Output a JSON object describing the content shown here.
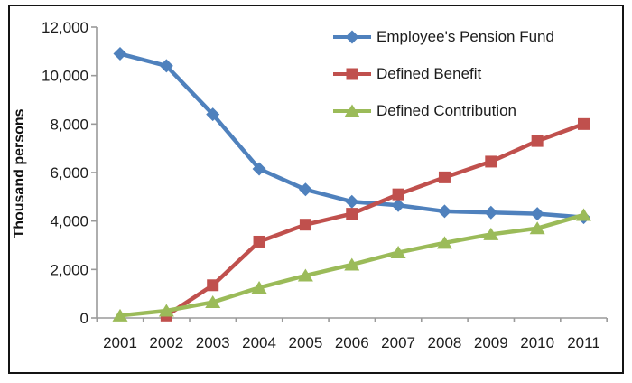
{
  "figure": {
    "background_color": "#ffffff",
    "frame_color": "#141414",
    "axis_color": "#9a9a9a",
    "text_color": "#1c1c1c"
  },
  "chart_data": {
    "type": "line",
    "title": "",
    "xlabel": "",
    "ylabel": "Thousand persons",
    "categories": [
      "2001",
      "2002",
      "2003",
      "2004",
      "2005",
      "2006",
      "2007",
      "2008",
      "2009",
      "2010",
      "2011"
    ],
    "ylim": [
      0,
      12000
    ],
    "y_ticks": [
      0,
      2000,
      4000,
      6000,
      8000,
      10000,
      12000
    ],
    "y_tick_labels": [
      "0",
      "2,000",
      "4,000",
      "6,000",
      "8,000",
      "10,000",
      "12,000"
    ],
    "grid": false,
    "legend_position": "top-right-inside",
    "series": [
      {
        "name": "Employee's Pension Fund",
        "marker": "diamond",
        "color": "#4F81BD",
        "values": [
          10900,
          10400,
          8400,
          6150,
          5300,
          4800,
          4650,
          4400,
          4350,
          4300,
          4150
        ]
      },
      {
        "name": "Defined Benefit",
        "marker": "square",
        "color": "#C0504D",
        "values": [
          null,
          100,
          1350,
          3150,
          3850,
          4300,
          5100,
          5800,
          6450,
          7300,
          8000
        ]
      },
      {
        "name": "Defined Contribution",
        "marker": "triangle",
        "color": "#9BBB59",
        "values": [
          100,
          300,
          650,
          1250,
          1750,
          2200,
          2700,
          3100,
          3450,
          3700,
          4250
        ]
      }
    ]
  }
}
